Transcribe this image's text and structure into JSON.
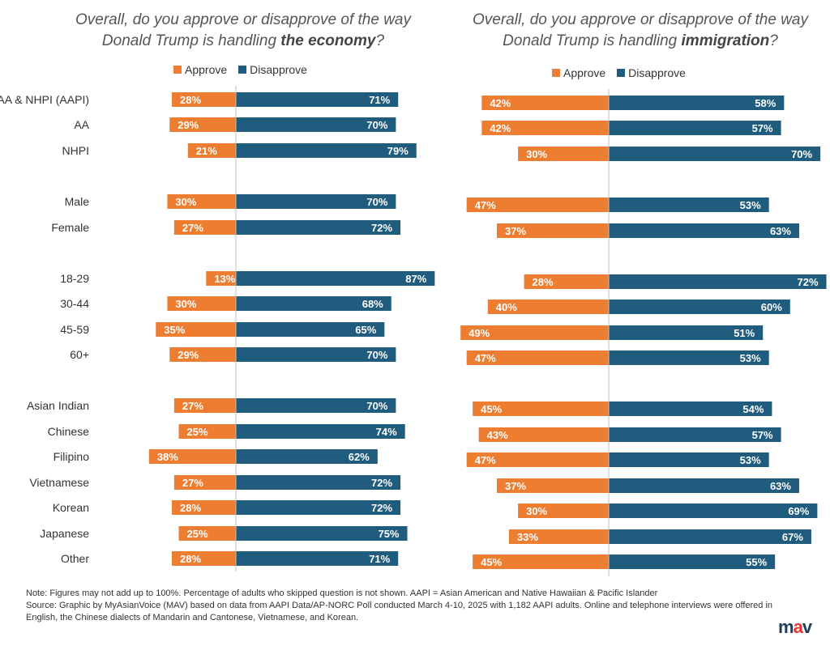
{
  "titles": {
    "left": {
      "prefix": "Overall, do you approve or disapprove of the way",
      "line2_prefix": "Donald Trump is handling ",
      "topic": "the economy",
      "suffix": "?"
    },
    "right": {
      "prefix": "Overall, do you approve or disapprove of the way",
      "line2_prefix": "Donald Trump is handling ",
      "topic": "immigration",
      "suffix": "?"
    }
  },
  "legend": {
    "approve": "Approve",
    "disapprove": "Disapprove"
  },
  "colors": {
    "approve": "#ed7d31",
    "disapprove": "#1f5c7e",
    "axis": "#bfbfbf"
  },
  "chart_data": [
    {
      "type": "bar",
      "orientation": "diverging-horizontal",
      "title": "Overall, do you approve or disapprove of the way Donald Trump is handling the economy?",
      "categories": [
        "AA & NHPI (AAPI)",
        "AA",
        "NHPI",
        "Male",
        "Female",
        "18-29",
        "30-44",
        "45-59",
        "60+",
        "Asian Indian",
        "Chinese",
        "Filipino",
        "Vietnamese",
        "Korean",
        "Japanese",
        "Other"
      ],
      "series": [
        {
          "name": "Approve",
          "values": [
            28,
            29,
            21,
            30,
            27,
            13,
            30,
            35,
            29,
            27,
            25,
            38,
            27,
            28,
            25,
            28
          ]
        },
        {
          "name": "Disapprove",
          "values": [
            71,
            70,
            79,
            70,
            72,
            87,
            68,
            65,
            70,
            70,
            74,
            62,
            72,
            72,
            75,
            71
          ]
        }
      ],
      "unit": "%",
      "legend_position": "top"
    },
    {
      "type": "bar",
      "orientation": "diverging-horizontal",
      "title": "Overall, do you approve or disapprove of the way Donald Trump is handling immigration?",
      "categories": [
        "AA & NHPI (AAPI)",
        "AA",
        "NHPI",
        "Male",
        "Female",
        "18-29",
        "30-44",
        "45-59",
        "60+",
        "Asian Indian",
        "Chinese",
        "Filipino",
        "Vietnamese",
        "Korean",
        "Japanese",
        "Other"
      ],
      "series": [
        {
          "name": "Approve",
          "values": [
            42,
            42,
            30,
            47,
            37,
            28,
            40,
            49,
            47,
            45,
            43,
            47,
            37,
            30,
            33,
            45
          ]
        },
        {
          "name": "Disapprove",
          "values": [
            58,
            57,
            70,
            53,
            63,
            72,
            60,
            51,
            53,
            54,
            57,
            53,
            63,
            69,
            67,
            55
          ]
        }
      ],
      "unit": "%",
      "legend_position": "top"
    }
  ],
  "footer": {
    "note": "Note: Figures may not add up to 100%. Percentage of adults who skipped  question is not shown.  AAPI = Asian American and Native Hawaiian & Pacific Islander",
    "source_line1": "Source:  Graphic by MyAsianVoice (MAV) based on data from AAPI Data/AP-NORC Poll conducted March 4-10, 2025 with 1,182 AAPI adults. Online and  telephone interviews were offered in",
    "source_line2": "English, the Chinese dialects of Mandarin and Cantonese, Vietnamese, and Korean.",
    "logo_text": "mav"
  }
}
